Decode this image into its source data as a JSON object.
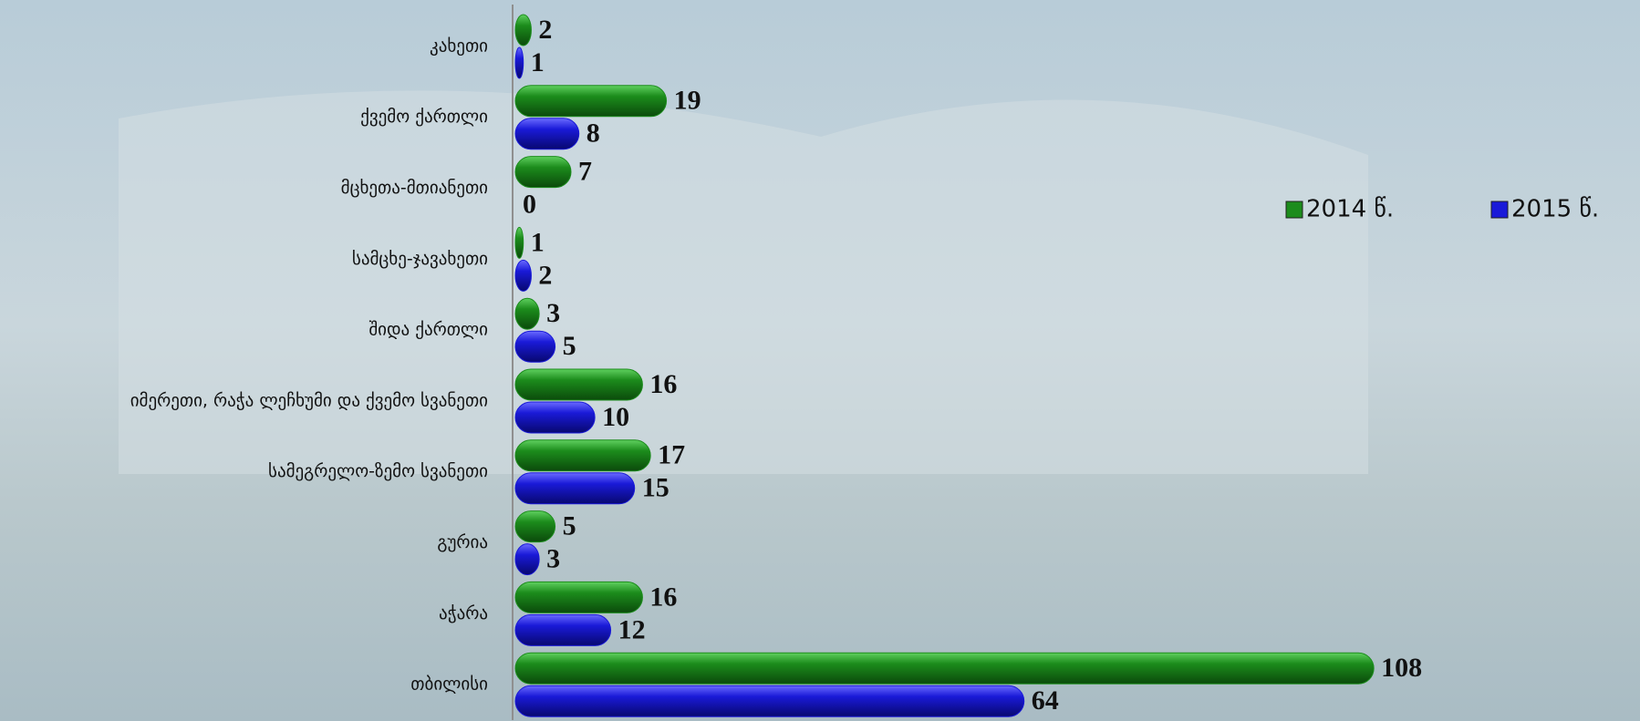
{
  "chart_data": {
    "type": "hbar",
    "categories": [
      "კახეთი",
      "ქვემო ქართლი",
      "მცხეთა-მთიანეთი",
      "სამცხე-ჯავახეთი",
      "შიდა ქართლი",
      "იმერეთი, რაჭა ლეჩხუმი და ქვემო სვანეთი",
      "სამეგრელო-ზემო სვანეთი",
      "გურია",
      "აჭარა",
      "თბილისი"
    ],
    "series": [
      {
        "name": "2014 წ.",
        "color": "#1c8c1c",
        "values": [
          2,
          19,
          7,
          1,
          3,
          16,
          17,
          5,
          16,
          108
        ]
      },
      {
        "name": "2015 წ.",
        "color": "#1a1ad8",
        "values": [
          1,
          8,
          0,
          2,
          5,
          10,
          15,
          3,
          12,
          64
        ]
      }
    ],
    "xlim": [
      0,
      140
    ],
    "legend": "right"
  }
}
